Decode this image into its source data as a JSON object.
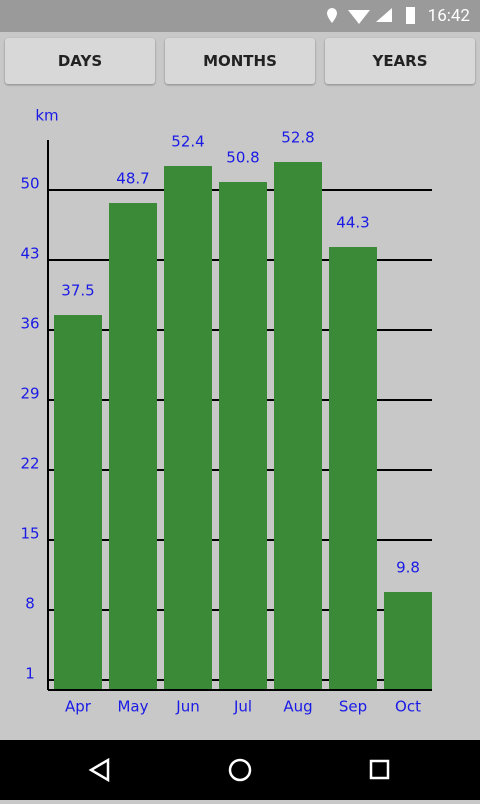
{
  "status_bar": {
    "time": "16:42"
  },
  "tabs": [
    "DAYS",
    "MONTHS",
    "YEARS"
  ],
  "chart_data": {
    "type": "bar",
    "y_label": "km",
    "categories": [
      "Apr",
      "May",
      "Jun",
      "Jul",
      "Aug",
      "Sep",
      "Oct"
    ],
    "values": [
      37.5,
      48.7,
      52.4,
      50.8,
      52.8,
      44.3,
      9.8
    ],
    "color": "#3a8a37",
    "label_color": "#1a1ae6",
    "ylim": [
      0,
      55
    ],
    "yticks": [
      1,
      8,
      15,
      22,
      29,
      36,
      43,
      50
    ],
    "grid": true
  }
}
